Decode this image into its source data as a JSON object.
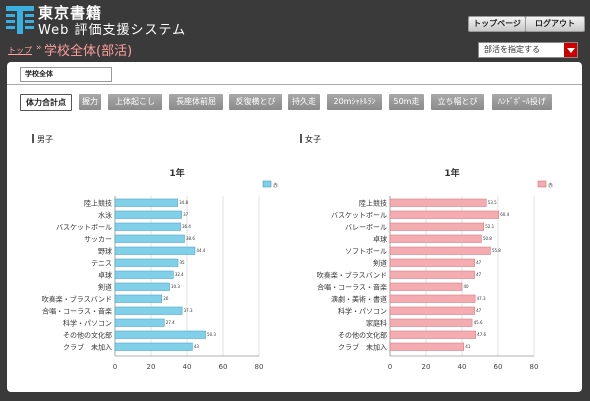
{
  "header": {
    "brand_name": "東京書籍",
    "brand_sub": "Web 評価支援システム",
    "top_page_label": "トップページ",
    "logout_label": "ログアウト"
  },
  "breadcrumb": {
    "top_label": "トップ",
    "separator": "»"
  },
  "page_title": "学校全体(部活)",
  "club_select": {
    "value": "部活を指定する"
  },
  "school_select": {
    "value": "学校全体"
  },
  "tabs": [
    {
      "label": "体力合計点",
      "active": true
    },
    {
      "label": "握力",
      "active": false
    },
    {
      "label": "上体起こし",
      "active": false
    },
    {
      "label": "長座体前屈",
      "active": false
    },
    {
      "label": "反復横とび",
      "active": false
    },
    {
      "label": "持久走",
      "active": false
    },
    {
      "label": "20mｼｬﾄﾙﾗﾝ",
      "active": false
    },
    {
      "label": "50m走",
      "active": false
    },
    {
      "label": "立ち幅とび",
      "active": false
    },
    {
      "label": "ﾊﾝﾄﾞﾎﾞｰﾙ投げ",
      "active": false
    }
  ],
  "sections": {
    "boys_label": "男子",
    "girls_label": "女子"
  },
  "chart_data": [
    {
      "type": "bar",
      "orientation": "horizontal",
      "title": "1年",
      "legend": {
        "label": "赤",
        "placement": "top-right"
      },
      "color": "#7fd0e8",
      "stroke": "#3a9ec0",
      "categories": [
        "陸上競技",
        "水泳",
        "バスケットボール",
        "サッカー",
        "野球",
        "テニス",
        "卓球",
        "剣道",
        "吹奏楽・ブラスバンド",
        "合唱・コーラス・音楽",
        "科学・パソコン",
        "その他の文化部",
        "クラブ　未加入"
      ],
      "values": [
        34.8,
        37,
        36.4,
        38.6,
        44.4,
        35,
        32.4,
        30.3,
        26,
        37.3,
        27.4,
        50.3,
        43
      ],
      "value_labels": [
        "34.8",
        "37",
        "36.4",
        "38.6",
        "44.4",
        "35",
        "32.4",
        "30.3",
        "26",
        "37.3",
        "27.4",
        "50.3",
        "43"
      ],
      "xlim": [
        0,
        80
      ],
      "xticks": [
        0,
        20,
        40,
        60,
        80
      ],
      "grid": true
    },
    {
      "type": "bar",
      "orientation": "horizontal",
      "title": "1年",
      "legend": {
        "label": "赤",
        "placement": "top-right"
      },
      "color": "#f4acb0",
      "stroke": "#d07078",
      "categories": [
        "陸上競技",
        "バスケットボール",
        "バレーボール",
        "卓球",
        "ソフトボール",
        "剣道",
        "吹奏楽・ブラスバンド",
        "合唱・コーラス・音楽",
        "演劇・美術・書道",
        "科学・パソコン",
        "家庭科",
        "その他の文化部",
        "クラブ　未加入"
      ],
      "values": [
        53.5,
        60.4,
        52.1,
        50.8,
        55.8,
        47,
        47,
        40,
        47.3,
        47,
        45.6,
        47.6,
        41
      ],
      "value_labels": [
        "53.5",
        "60.4",
        "52.1",
        "50.8",
        "55.8",
        "47",
        "47",
        "40",
        "47.3",
        "47",
        "45.6",
        "47.6",
        "41"
      ],
      "xlim": [
        0,
        80
      ],
      "xticks": [
        0,
        20,
        40,
        60,
        80
      ],
      "grid": true
    }
  ]
}
